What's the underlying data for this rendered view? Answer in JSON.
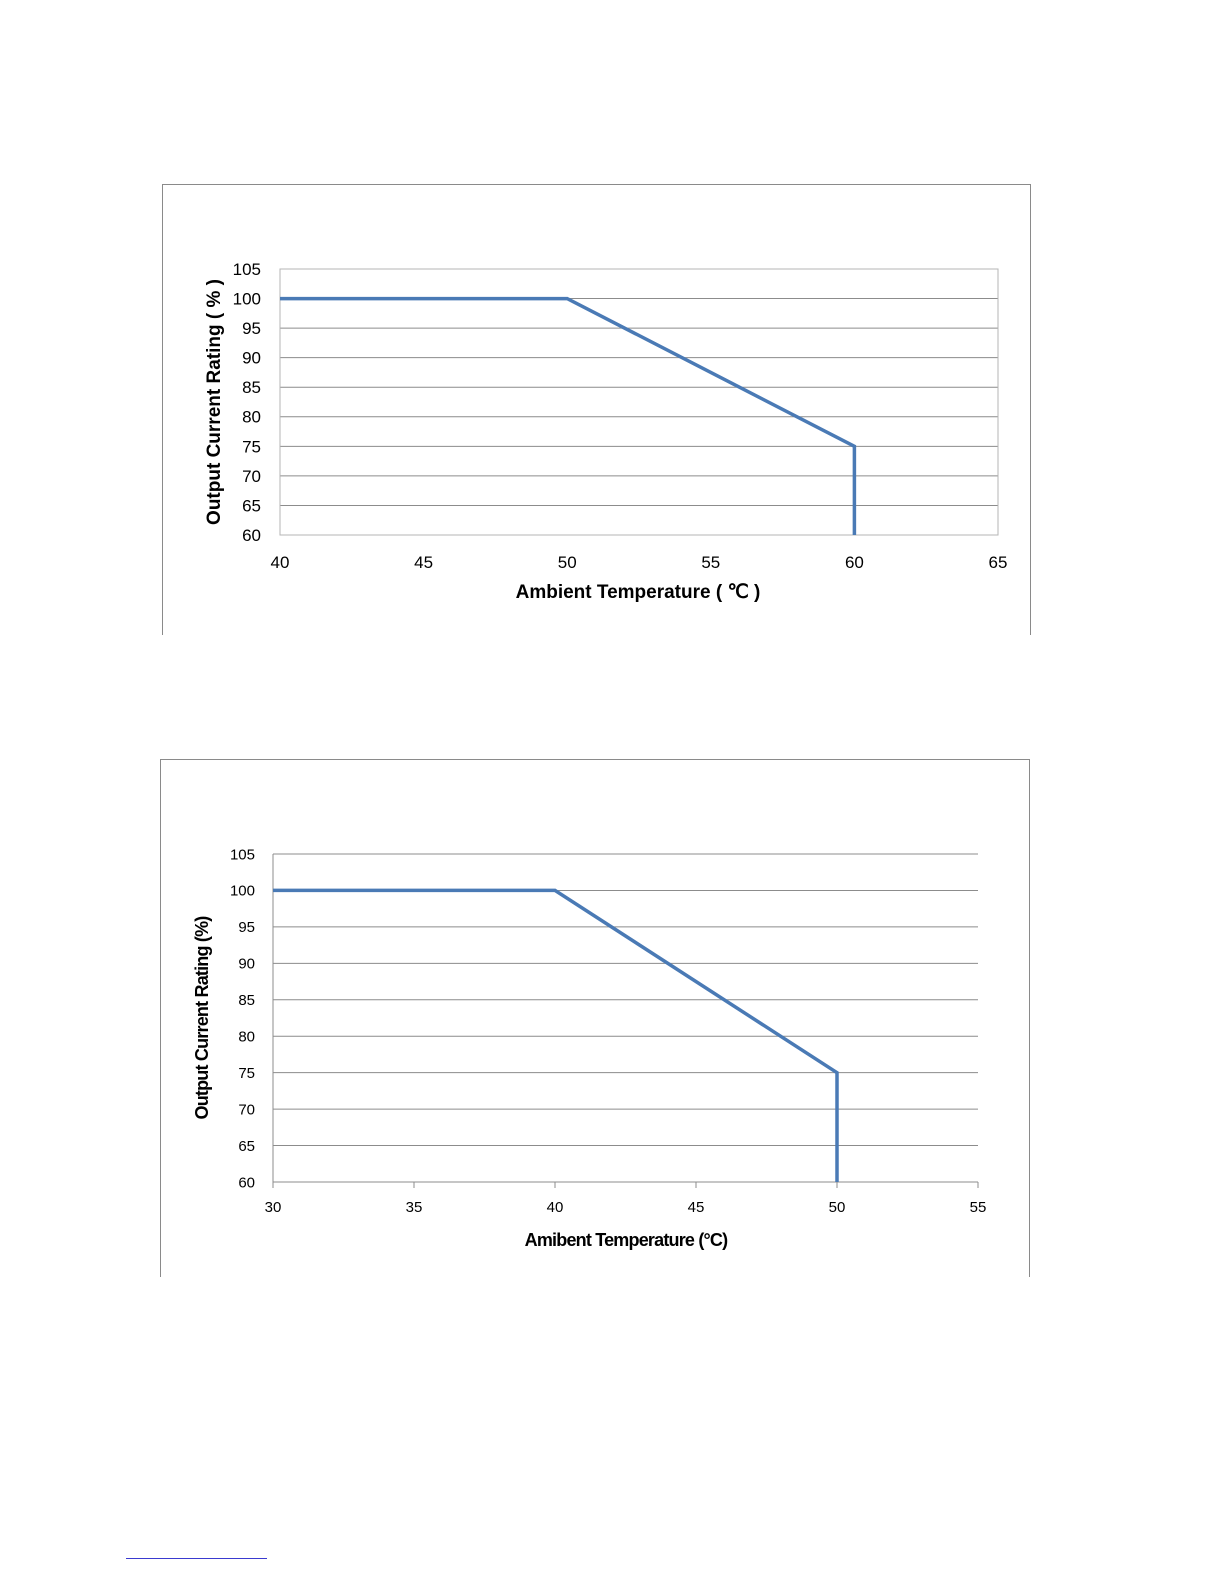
{
  "charts": [
    {
      "ylabel": "Output Current Rating ( % )",
      "xlabel": "Ambient Temperature ( ℃ )"
    },
    {
      "ylabel": "Output Current Rating (%)",
      "xlabel": "Amibent Temperature (°C)"
    }
  ],
  "chart_data": [
    {
      "type": "line",
      "xlabel": "Ambient Temperature ( ℃ )",
      "ylabel": "Output Current Rating ( % )",
      "xlim": [
        40,
        65
      ],
      "ylim": [
        60,
        105
      ],
      "xticks": [
        40,
        45,
        50,
        55,
        60,
        65
      ],
      "yticks": [
        60,
        65,
        70,
        75,
        80,
        85,
        90,
        95,
        100,
        105
      ],
      "grid": true,
      "legend": "none",
      "color": "#4a7ab5",
      "series": [
        {
          "x": [
            40,
            50,
            60,
            60
          ],
          "y": [
            100,
            100,
            75,
            60
          ]
        }
      ]
    },
    {
      "type": "line",
      "xlabel": "Amibent Temperature (°C)",
      "ylabel": "Output Current Rating (%)",
      "xlim": [
        30,
        55
      ],
      "ylim": [
        60,
        105
      ],
      "xticks": [
        30,
        35,
        40,
        45,
        50,
        55
      ],
      "yticks": [
        60,
        65,
        70,
        75,
        80,
        85,
        90,
        95,
        100,
        105
      ],
      "grid": true,
      "legend": "none",
      "color": "#4a7ab5",
      "series": [
        {
          "x": [
            30,
            40,
            50,
            50
          ],
          "y": [
            100,
            100,
            75,
            60
          ]
        }
      ]
    }
  ]
}
